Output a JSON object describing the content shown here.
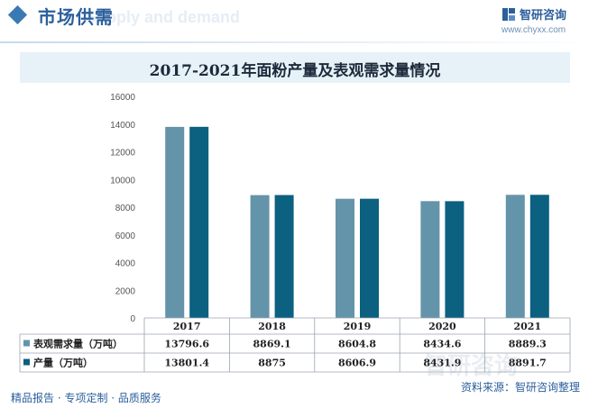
{
  "header": {
    "section_title": "市场供需",
    "section_subtitle": "Supply and demand",
    "brand_name": "智研咨询",
    "brand_url": "www.chyxx.com"
  },
  "watermark": {
    "text": "智研咨询"
  },
  "footer": {
    "left": "精品报告 · 专项定制 · 品质服务",
    "source": "资料来源：智研咨询整理"
  },
  "colors": {
    "demand": "#6494a9",
    "production": "#0c6080",
    "brand": "#2b5f9c",
    "title_band": "#e7f1f8"
  },
  "chart_data": {
    "type": "bar",
    "title": "2017-2021年面粉产量及表观需求量情况",
    "categories": [
      "2017",
      "2018",
      "2019",
      "2020",
      "2021"
    ],
    "series": [
      {
        "name": "表观需求量（万吨）",
        "values": [
          13796.6,
          8869.1,
          8604.8,
          8434.6,
          8889.3
        ],
        "labels": [
          "13796.6",
          "8869.1",
          "8604.8",
          "8434.6",
          "8889.3"
        ]
      },
      {
        "name": "产量（万吨）",
        "values": [
          13801.4,
          8875,
          8606.9,
          8431.9,
          8891.7
        ],
        "labels": [
          "13801.4",
          "8875",
          "8606.9",
          "8431.9",
          "8891.7"
        ]
      }
    ],
    "yticks": [
      "0",
      "2000",
      "4000",
      "6000",
      "8000",
      "10000",
      "12000",
      "14000",
      "16000"
    ],
    "ylim": [
      0,
      16000
    ],
    "legend": "data-table",
    "grid": false
  }
}
